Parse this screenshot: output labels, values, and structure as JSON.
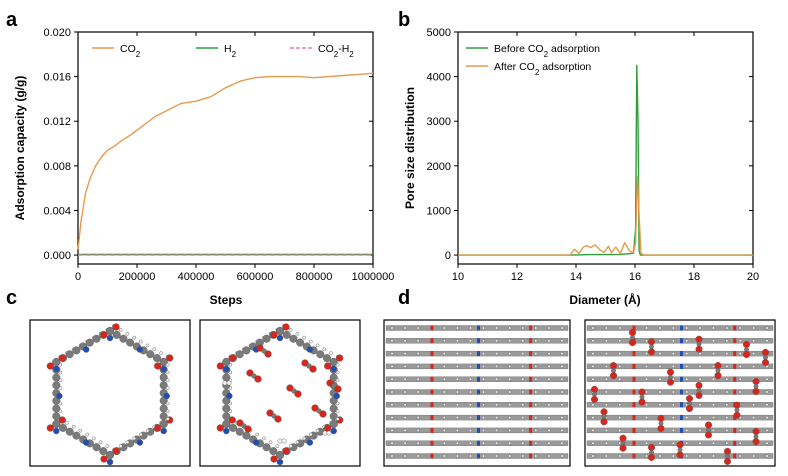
{
  "panel_letters": [
    "a",
    "b",
    "c",
    "d"
  ],
  "colors": {
    "co2": "#E89A4B",
    "h2": "#2E9E3A",
    "co2h2": "#E87BB0",
    "before": "#2E9E3A",
    "after": "#E89A4B",
    "carbon": "#7a7a7a",
    "oxygen": "#d9261c",
    "nitrogen": "#1f4fb5",
    "hydrogen": "#f2f2f2"
  },
  "chart_data": [
    {
      "type": "line",
      "title": "",
      "xlabel": "Steps",
      "ylabel": "Adsorption capacity (g/g)",
      "xlim": [
        0,
        1000000
      ],
      "ylim": [
        -0.0008,
        0.02
      ],
      "xticks": [
        0,
        200000,
        400000,
        600000,
        800000,
        1000000
      ],
      "xtick_labels": [
        "0",
        "200000",
        "400000",
        "600000",
        "800000",
        "1000000"
      ],
      "yticks": [
        0.0,
        0.004,
        0.008,
        0.012,
        0.016,
        0.02
      ],
      "ytick_labels": [
        "0.000",
        "0.004",
        "0.008",
        "0.012",
        "0.016",
        "0.020"
      ],
      "legend": {
        "position": "top",
        "entries": [
          {
            "label_main": "CO",
            "label_sub": "2",
            "label_tail": "",
            "style": "solid",
            "series": "co2"
          },
          {
            "label_main": "H",
            "label_sub": "2",
            "label_tail": "",
            "style": "solid",
            "series": "h2"
          },
          {
            "label_main": "CO",
            "label_sub": "2",
            "label_tail": "-H",
            "label_sub2": "2",
            "style": "dashed",
            "series": "co2h2"
          }
        ]
      },
      "series": [
        {
          "name": "CO2",
          "key": "co2",
          "x": [
            0,
            10000,
            25000,
            40000,
            60000,
            80000,
            100000,
            120000,
            150000,
            180000,
            200000,
            230000,
            260000,
            290000,
            320000,
            350000,
            400000,
            450000,
            500000,
            550000,
            600000,
            650000,
            700000,
            750000,
            800000,
            850000,
            900000,
            950000,
            1000000
          ],
          "y": [
            0.0005,
            0.003,
            0.0055,
            0.0068,
            0.008,
            0.0088,
            0.0094,
            0.0097,
            0.0103,
            0.0108,
            0.0112,
            0.0118,
            0.0124,
            0.0128,
            0.0132,
            0.0136,
            0.0138,
            0.0142,
            0.015,
            0.0156,
            0.0159,
            0.016,
            0.016,
            0.016,
            0.0159,
            0.016,
            0.0161,
            0.0162,
            0.0163
          ]
        },
        {
          "name": "H2",
          "key": "h2",
          "x": [
            0,
            1000000
          ],
          "y": [
            5e-05,
            5e-05
          ]
        },
        {
          "name": "CO2-H2",
          "key": "co2h2",
          "x": [
            0,
            1000000
          ],
          "y": [
            0.0,
            0.0
          ]
        }
      ]
    },
    {
      "type": "line",
      "title": "",
      "xlabel": "Diameter (Å)",
      "ylabel": "Pore size distribution",
      "xlim": [
        10,
        20
      ],
      "ylim": [
        -200,
        5000
      ],
      "xticks": [
        10,
        12,
        14,
        16,
        18,
        20
      ],
      "xtick_labels": [
        "10",
        "12",
        "14",
        "16",
        "18",
        "20"
      ],
      "yticks": [
        0,
        1000,
        2000,
        3000,
        4000,
        5000
      ],
      "ytick_labels": [
        "0",
        "1000",
        "2000",
        "3000",
        "4000",
        "5000"
      ],
      "legend": {
        "position": "top-left",
        "entries": [
          {
            "label_main": "Before CO",
            "label_sub": "2",
            "label_tail": " adsorption",
            "style": "solid",
            "series": "before"
          },
          {
            "label_main": "After   CO",
            "label_sub": "2",
            "label_tail": " adsorption",
            "style": "solid",
            "series": "after"
          }
        ]
      },
      "series": [
        {
          "name": "Before CO2 adsorption",
          "key": "before",
          "x": [
            10,
            13.8,
            14.0,
            14.5,
            15.0,
            15.5,
            15.8,
            15.95,
            16.02,
            16.06,
            16.1,
            16.14,
            16.18,
            16.3,
            20
          ],
          "y": [
            0,
            0,
            5,
            10,
            10,
            15,
            30,
            40,
            600,
            4250,
            3000,
            100,
            0,
            0,
            0
          ]
        },
        {
          "name": "After CO2 adsorption",
          "key": "after",
          "x": [
            10,
            13.8,
            13.95,
            14.1,
            14.25,
            14.35,
            14.5,
            14.65,
            14.8,
            14.95,
            15.1,
            15.2,
            15.35,
            15.5,
            15.65,
            15.8,
            15.95,
            16.02,
            16.08,
            16.14,
            16.2,
            16.3,
            20
          ],
          "y": [
            0,
            0,
            130,
            40,
            180,
            210,
            170,
            230,
            120,
            60,
            200,
            50,
            180,
            30,
            280,
            100,
            50,
            300,
            1750,
            900,
            50,
            0,
            0
          ]
        }
      ]
    }
  ],
  "structures": {
    "panel_c": [
      "pristine-framework",
      "framework-with-co2"
    ],
    "panel_d": [
      "pristine-stack",
      "stack-with-co2"
    ]
  }
}
